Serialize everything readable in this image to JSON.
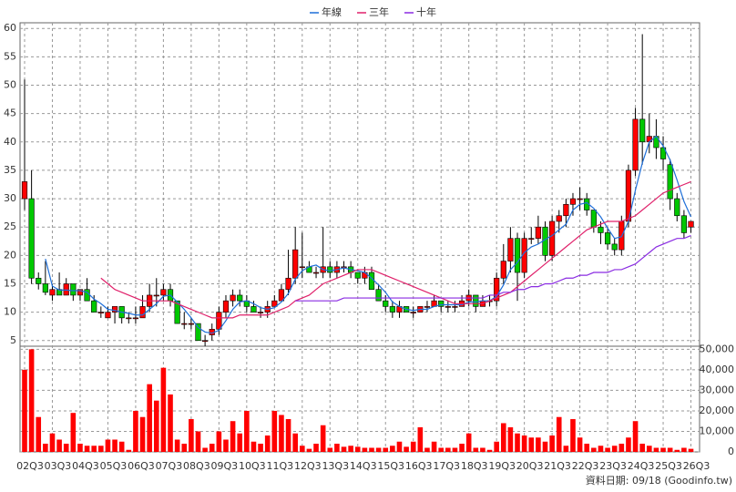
{
  "chart_data": [
    {
      "type": "candlestick",
      "legend": "top",
      "grid": true,
      "up_color": "#ff0000",
      "down_color": "#00c800",
      "ylim": [
        4,
        61
      ],
      "yticks": [
        5,
        10,
        15,
        20,
        25,
        30,
        35,
        40,
        45,
        50,
        55,
        60
      ],
      "categories": [
        "02Q3",
        null,
        null,
        null,
        "03Q3",
        null,
        null,
        null,
        "04Q3",
        null,
        null,
        null,
        "05Q3",
        null,
        null,
        null,
        "06Q3",
        null,
        null,
        null,
        "07Q3",
        null,
        null,
        null,
        "08Q3",
        null,
        null,
        null,
        "09Q3",
        null,
        null,
        null,
        "10Q3",
        null,
        null,
        null,
        "11Q3",
        null,
        null,
        null,
        "12Q3",
        null,
        null,
        null,
        "13Q3",
        null,
        null,
        null,
        "14Q3",
        null,
        null,
        null,
        "15Q3",
        null,
        null,
        null,
        "16Q3",
        null,
        null,
        null,
        "17Q3",
        null,
        null,
        null,
        "18Q3",
        null,
        null,
        null,
        "19Q3",
        null,
        null,
        null,
        "20Q3",
        null,
        null,
        null,
        "21Q3",
        null,
        null,
        null,
        "22Q3",
        null,
        null,
        null,
        "23Q3",
        null,
        null,
        null,
        "24Q3",
        null,
        null,
        null,
        "25Q3",
        null,
        null,
        null,
        "26Q3"
      ],
      "open": [
        30,
        30,
        16,
        15,
        13,
        14,
        13,
        15,
        13,
        14,
        12,
        10,
        9,
        10,
        11,
        9,
        9,
        9,
        11,
        13,
        13,
        14,
        12,
        8,
        8,
        8,
        5,
        6,
        7,
        10,
        12,
        13,
        12,
        11,
        10,
        10,
        11,
        12,
        14,
        16,
        18,
        18,
        17,
        17,
        18,
        17,
        18,
        18,
        17,
        16,
        17,
        14,
        12,
        11,
        10,
        11,
        10,
        10,
        11,
        11,
        12,
        11,
        11,
        11,
        12,
        13,
        11,
        12,
        12,
        16,
        19,
        23,
        17,
        23,
        23,
        25,
        20,
        26,
        27,
        29,
        30,
        30,
        28,
        25,
        24,
        22,
        21,
        26,
        35,
        44,
        40,
        41,
        39,
        36,
        30,
        27,
        25
      ],
      "high": [
        51,
        35,
        17,
        19,
        15,
        17,
        16,
        15,
        14,
        16,
        13,
        11,
        11,
        11,
        11,
        10,
        11,
        13,
        15,
        16,
        15,
        15,
        12,
        10,
        9,
        8,
        6,
        8,
        11,
        13,
        14,
        14,
        13,
        12,
        11,
        12,
        13,
        15,
        21,
        25,
        24,
        19,
        18,
        25,
        19,
        19,
        19,
        19,
        17,
        18,
        18,
        15,
        13,
        12,
        12,
        11,
        11,
        11,
        12,
        13,
        12,
        12,
        12,
        13,
        14,
        13,
        13,
        13,
        17,
        22,
        25,
        24,
        24,
        25,
        27,
        26,
        27,
        28,
        30,
        31,
        32,
        31,
        28,
        26,
        25,
        23,
        27,
        36,
        46,
        59,
        45,
        44,
        41,
        37,
        31,
        28,
        26
      ],
      "low": [
        28,
        15,
        14,
        13,
        12,
        13,
        13,
        12,
        12,
        12,
        10,
        9,
        9,
        8,
        8,
        8,
        8,
        9,
        10,
        11,
        12,
        11,
        8,
        7,
        7,
        5,
        4,
        5,
        6,
        9,
        11,
        11,
        10,
        10,
        9,
        9,
        11,
        12,
        13,
        15,
        16,
        17,
        16,
        16,
        16,
        16,
        17,
        16,
        15,
        15,
        14,
        12,
        10,
        9,
        9,
        10,
        9,
        10,
        10,
        11,
        10,
        10,
        10,
        11,
        11,
        10,
        11,
        11,
        11,
        15,
        17,
        12,
        16,
        22,
        22,
        19,
        19,
        24,
        25,
        27,
        28,
        27,
        24,
        22,
        21,
        20,
        20,
        25,
        34,
        36,
        38,
        37,
        35,
        28,
        26,
        23,
        24
      ],
      "close": [
        33,
        16,
        15,
        13.5,
        14,
        13,
        15,
        13,
        14,
        12,
        10,
        10,
        10,
        11,
        9,
        9,
        9,
        11,
        13,
        13,
        14,
        12,
        8,
        8,
        8,
        5,
        5,
        7,
        10,
        12,
        13,
        12,
        11,
        10,
        10,
        11,
        12,
        14,
        16,
        21,
        18,
        17,
        17,
        18,
        17,
        18,
        18,
        17,
        16,
        17,
        14,
        12,
        11,
        10,
        11,
        10,
        10,
        11,
        11,
        12,
        11,
        11,
        11,
        12,
        13,
        11,
        12,
        12,
        16,
        19,
        23,
        17,
        23,
        23,
        25,
        20,
        26,
        27,
        29,
        30,
        30,
        28,
        25,
        24,
        22,
        21,
        26,
        35,
        44,
        40,
        41,
        39,
        37,
        30,
        27,
        24,
        26
      ],
      "series": [
        {
          "name": "年線",
          "color": "#1e6fd9",
          "values": [
            null,
            null,
            null,
            19.4,
            14.6,
            13.9,
            13.9,
            13.8,
            13.8,
            13.5,
            12.3,
            11.5,
            10.5,
            10.3,
            10,
            9.8,
            9.5,
            9.5,
            10.5,
            11.5,
            12.8,
            13,
            11.8,
            10.5,
            9,
            7.3,
            6.5,
            6.3,
            6.8,
            8.5,
            10.5,
            11.8,
            12,
            11.5,
            10.8,
            10.5,
            10.8,
            11.8,
            13.3,
            15.8,
            17.3,
            18,
            18.3,
            17.5,
            17.3,
            17.5,
            17.8,
            17.5,
            17.3,
            17,
            16,
            14.8,
            13.5,
            11.8,
            11,
            10.5,
            10.3,
            10.5,
            10.5,
            11,
            11.3,
            11.3,
            11.3,
            11.3,
            11.8,
            11.8,
            12,
            12,
            12.8,
            14.8,
            17.5,
            18.8,
            20.5,
            21.5,
            22,
            22.8,
            23.5,
            24.5,
            25.5,
            28,
            29,
            29.3,
            28.3,
            26.8,
            24.8,
            23,
            23.3,
            26,
            31.5,
            36.3,
            40,
            41,
            39.3,
            36.8,
            33.3,
            29.5,
            26.8
          ]
        },
        {
          "name": "三年",
          "color": "#e0206a",
          "values": [
            null,
            null,
            null,
            null,
            null,
            null,
            null,
            null,
            null,
            null,
            null,
            16,
            15,
            14,
            13.5,
            13,
            12.5,
            12,
            12,
            12,
            12,
            12,
            11.5,
            11,
            10.5,
            10,
            9.5,
            9,
            9,
            9,
            9,
            9.5,
            9.5,
            9.5,
            9.5,
            9.5,
            10,
            10.5,
            11,
            12,
            12.5,
            13,
            14,
            15,
            15.5,
            16,
            16.5,
            17,
            17.5,
            17.5,
            17.5,
            17,
            16.5,
            16,
            15.5,
            15,
            14.5,
            14,
            13.5,
            13,
            12.5,
            12,
            11.5,
            11.5,
            11.5,
            11.5,
            11.5,
            12,
            12.5,
            13,
            13.5,
            14.5,
            15.5,
            16.5,
            17.5,
            18.5,
            19.5,
            20.5,
            21.5,
            22.5,
            23.5,
            24.5,
            25,
            25.5,
            26,
            26,
            26,
            26.5,
            27,
            28,
            29,
            30,
            31,
            31.5,
            32,
            32.5,
            33
          ]
        },
        {
          "name": "十年",
          "color": "#8a2be2",
          "values": [
            null,
            null,
            null,
            null,
            null,
            null,
            null,
            null,
            null,
            null,
            null,
            null,
            null,
            null,
            null,
            null,
            null,
            null,
            null,
            null,
            null,
            null,
            null,
            null,
            null,
            null,
            null,
            null,
            null,
            null,
            null,
            null,
            null,
            null,
            null,
            null,
            null,
            null,
            null,
            12,
            12,
            12,
            12,
            12,
            12,
            12,
            12.5,
            12.5,
            12.5,
            12.5,
            12.5,
            12.5,
            12.5,
            12.5,
            12.5,
            12.5,
            12.5,
            12.5,
            12.5,
            12.5,
            12.5,
            12.5,
            12.5,
            12.5,
            12.5,
            12.5,
            12.5,
            13,
            13,
            13.5,
            13.5,
            14,
            14,
            14.5,
            14.5,
            15,
            15,
            15.5,
            16,
            16,
            16.5,
            16.5,
            17,
            17,
            17,
            17.5,
            17.5,
            18,
            18.5,
            19.5,
            20.5,
            21.5,
            22,
            22.5,
            23,
            23,
            23.5
          ]
        }
      ]
    },
    {
      "type": "bar",
      "color": "#ff0000",
      "grid": true,
      "ylim": [
        0,
        51500
      ],
      "yticks": [
        0,
        {
          "value": 10000,
          "label": "10,000"
        },
        {
          "value": 20000,
          "label": "20,000"
        },
        {
          "value": 30000,
          "label": "30,000"
        },
        {
          "value": 40000,
          "label": "40,000"
        },
        {
          "value": 50000,
          "label": "50,000"
        }
      ],
      "values": [
        40000,
        50000,
        17000,
        4000,
        9000,
        6000,
        4000,
        19000,
        4000,
        3000,
        3000,
        3000,
        6000,
        6000,
        5000,
        1000,
        20000,
        17000,
        33000,
        25000,
        41000,
        28000,
        6000,
        4000,
        16000,
        10000,
        2000,
        4000,
        10000,
        6000,
        15000,
        9000,
        20000,
        5000,
        4000,
        8000,
        20000,
        18000,
        16000,
        9000,
        3000,
        1500,
        4000,
        13000,
        2000,
        4000,
        2500,
        3000,
        2500,
        2000,
        2000,
        2000,
        2000,
        3000,
        5000,
        2500,
        5000,
        12000,
        2000,
        5000,
        2000,
        2000,
        2000,
        4000,
        9000,
        2000,
        2000,
        1000,
        5000,
        14000,
        12000,
        9000,
        8000,
        7000,
        7000,
        5000,
        8000,
        17000,
        3000,
        16000,
        7000,
        4000,
        2000,
        3000,
        2000,
        3000,
        4000,
        7000,
        15000,
        4000,
        3000,
        2000,
        2000,
        2000,
        1000,
        2000,
        1500
      ]
    }
  ],
  "footer": "資料日期: 09/18 (Goodinfo.tw)"
}
